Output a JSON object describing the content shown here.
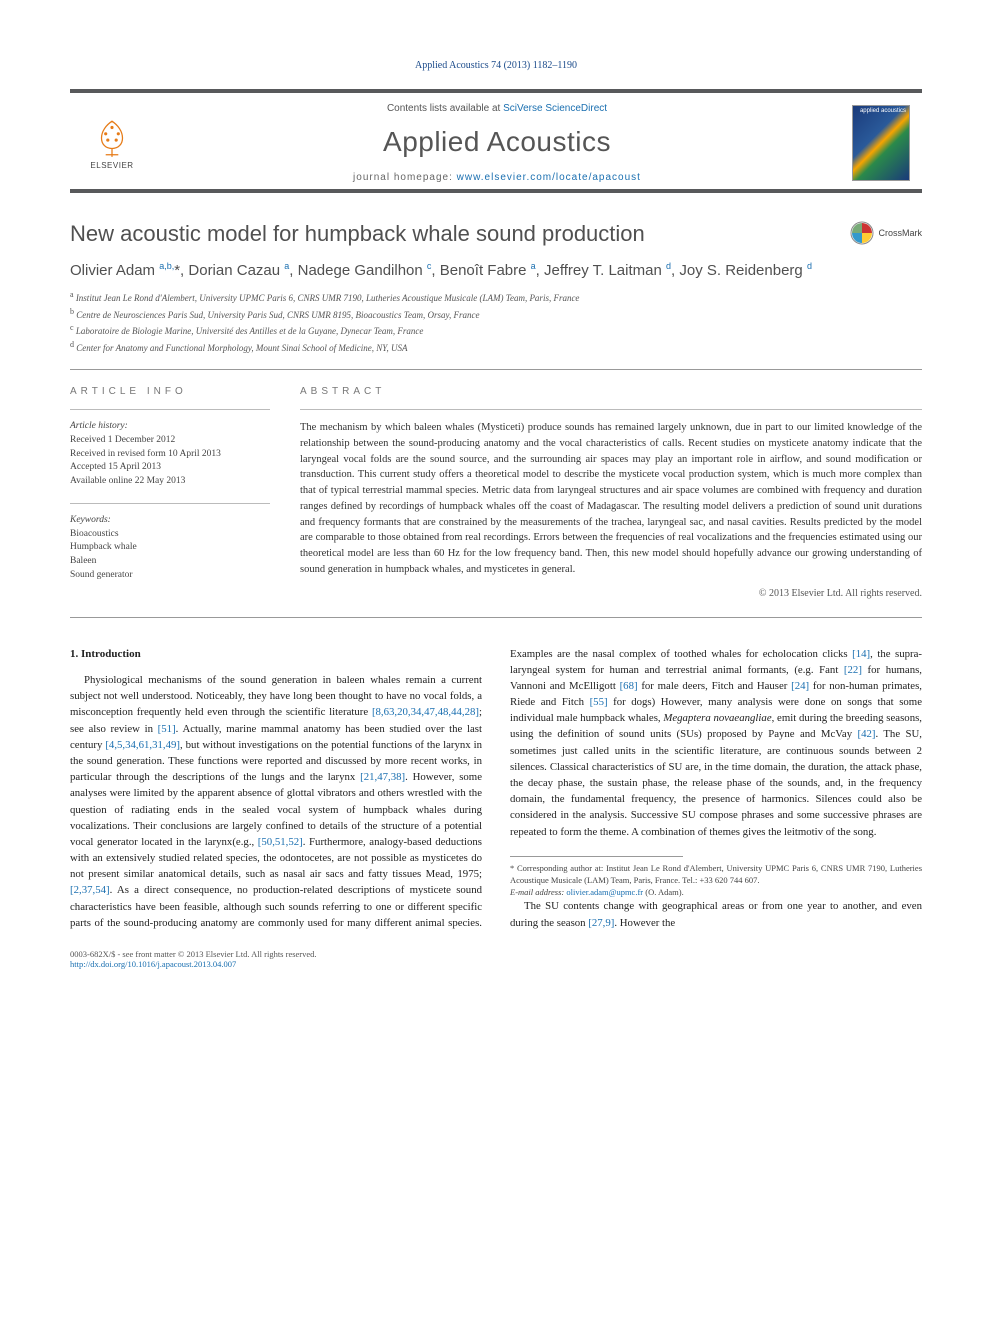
{
  "journal_ref": {
    "text": "Applied Acoustics 74 (2013) 1182–1190"
  },
  "header": {
    "contents_line_prefix": "Contents lists available at ",
    "contents_link": "SciVerse ScienceDirect",
    "journal_title": "Applied Acoustics",
    "homepage_prefix": "journal homepage: ",
    "homepage_link": "www.elsevier.com/locate/apacoust",
    "publisher_name": "ELSEVIER",
    "cover_text": "applied acoustics"
  },
  "article": {
    "title": "New acoustic model for humpback whale sound production",
    "crossmark": "CrossMark"
  },
  "authors_html": "Olivier Adam <sup>a,b,</sup>*, Dorian Cazau <sup>a</sup>, Nadege Gandilhon <sup>c</sup>, Benoît Fabre <sup>a</sup>, Jeffrey T. Laitman <sup>d</sup>, Joy S. Reidenberg <sup>d</sup>",
  "affiliations": {
    "a": "Institut Jean Le Rond d'Alembert, University UPMC Paris 6, CNRS UMR 7190, Lutheries Acoustique Musicale (LAM) Team, Paris, France",
    "b": "Centre de Neurosciences Paris Sud, University Paris Sud, CNRS UMR 8195, Bioacoustics Team, Orsay, France",
    "c": "Laboratoire de Biologie Marine, Université des Antilles et de la Guyane, Dynecar Team, France",
    "d": "Center for Anatomy and Functional Morphology, Mount Sinai School of Medicine, NY, USA"
  },
  "info": {
    "label": "ARTICLE INFO",
    "history_label": "Article history:",
    "history": [
      "Received 1 December 2012",
      "Received in revised form 10 April 2013",
      "Accepted 15 April 2013",
      "Available online 22 May 2013"
    ],
    "keywords_label": "Keywords:",
    "keywords": [
      "Bioacoustics",
      "Humpback whale",
      "Baleen",
      "Sound generator"
    ]
  },
  "abstract": {
    "label": "ABSTRACT",
    "text": "The mechanism by which baleen whales (Mysticeti) produce sounds has remained largely unknown, due in part to our limited knowledge of the relationship between the sound-producing anatomy and the vocal characteristics of calls. Recent studies on mysticete anatomy indicate that the laryngeal vocal folds are the sound source, and the surrounding air spaces may play an important role in airflow, and sound modification or transduction. This current study offers a theoretical model to describe the mysticete vocal production system, which is much more complex than that of typical terrestrial mammal species. Metric data from laryngeal structures and air space volumes are combined with frequency and duration ranges defined by recordings of humpback whales off the coast of Madagascar. The resulting model delivers a prediction of sound unit durations and frequency formants that are constrained by the measurements of the trachea, laryngeal sac, and nasal cavities. Results predicted by the model are comparable to those obtained from real recordings. Errors between the frequencies of real vocalizations and the frequencies estimated using our theoretical model are less than 60 Hz for the low frequency band. Then, this new model should hopefully advance our growing understanding of sound generation in humpback whales, and mysticetes in general.",
    "copyright": "© 2013 Elsevier Ltd. All rights reserved."
  },
  "body": {
    "section_num": "1.",
    "section_title": "Introduction",
    "col1_p1_a": "Physiological mechanisms of the sound generation in baleen whales remain a current subject not well understood. Noticeably, they have long been thought to have no vocal folds, a misconception frequently held even through the scientific literature ",
    "ref1": "[8,63,20,34,47,48,44,28]",
    "col1_p1_b": "; see also review in ",
    "ref2": "[51]",
    "col1_p1_c": ". Actually, marine mammal anatomy has been studied over the last century ",
    "ref3": "[4,5,34,61,31,49]",
    "col1_p1_d": ", but without investigations on the potential functions of the larynx in the sound generation. These functions were reported and discussed by more recent works, in particular through the descriptions of the lungs and the larynx ",
    "ref4": "[21,47,38]",
    "col1_p1_e": ". However, some analyses were limited by the apparent absence of glottal vibrators and others wrestled with the question of radiating ends in the sealed vocal system of humpback whales during vocalizations. Their conclusions are largely confined to details of the structure of a potential vocal generator located in the larynx(e.g., ",
    "ref5": "[50,51,52]",
    "col1_p1_f": ". Furthermore, analogy-based deductions with an extensively studied related species, the odontocetes, are not possible as mysticetes do",
    "col2_p1_a": "not present similar anatomical details, such as nasal air sacs and fatty tissues Mead, 1975; ",
    "ref6": "[2,37,54]",
    "col2_p1_b": ". As a direct consequence, no production-related descriptions of mysticete sound characteristics have been feasible, although such sounds referring to one or different specific parts of the sound-producing anatomy are commonly used for many different animal species. Examples are the nasal complex of toothed whales for echolocation clicks ",
    "ref7": "[14]",
    "col2_p1_c": ", the supra-laryngeal system for human and terrestrial animal formants, (e.g. Fant ",
    "ref8": "[22]",
    "col2_p1_d": " for humans, Vannoni and McElligott ",
    "ref9": "[68]",
    "col2_p1_e": " for male deers, Fitch and Hauser ",
    "ref10": "[24]",
    "col2_p1_f": " for non-human primates, Riede and Fitch ",
    "ref11": "[55]",
    "col2_p1_g": " for dogs) However, many analysis were done on songs that some individual male humpback whales, ",
    "ital1": "Megaptera novaeangliae",
    "col2_p1_h": ", emit during the breeding seasons, using the definition of sound units (SUs) proposed by Payne and McVay ",
    "ref12": "[42]",
    "col2_p1_i": ". The SU, sometimes just called units in the scientific literature, are continuous sounds between 2 silences. Classical characteristics of SU are, in the time domain, the duration, the attack phase, the decay phase, the sustain phase, the release phase of the sounds, and, in the frequency domain, the fundamental frequency, the presence of harmonics. Silences could also be considered in the analysis. Successive SU compose phrases and some successive phrases are repeated to form the theme. A combination of themes gives the leitmotiv of the song.",
    "col2_p2_a": "The SU contents change with geographical areas or from one year to another, and even during the season ",
    "ref13": "[27,9]",
    "col2_p2_b": ". However the"
  },
  "footnotes": {
    "corr_label": "* Corresponding author at:",
    "corr_text": " Institut Jean Le Rond d'Alembert, University UPMC Paris 6, CNRS UMR 7190, Lutheries Acoustique Musicale (LAM) Team, Paris, France. Tel.: +33 620 744 607.",
    "email_label": "E-mail address: ",
    "email": "olivier.adam@upmc.fr",
    "email_suffix": " (O. Adam)."
  },
  "footer": {
    "left1": "0003-682X/$ - see front matter © 2013 Elsevier Ltd. All rights reserved.",
    "left2_link": "http://dx.doi.org/10.1016/j.apacoust.2013.04.007"
  },
  "colors": {
    "link": "#1a6fb0",
    "journal_ref": "#1a4a8a",
    "rule": "#58595b"
  }
}
